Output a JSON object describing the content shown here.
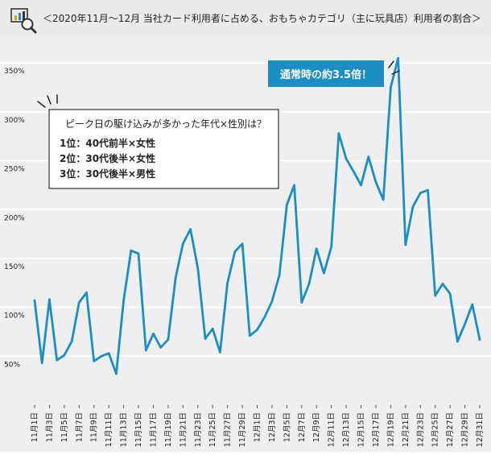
{
  "header": {
    "title": "＜2020年11月〜12月 当社カード利用者に占める、おもちゃカテゴリ（主に玩具店）利用者の割合＞",
    "logo_icon": "chart-magnifier-icon"
  },
  "callout": {
    "peak_badge": "通常時の約3.5倍！",
    "question": "ピーク日の駆け込みが多かった年代×性別は？",
    "ranks": [
      "1位：40代前半×女性",
      "2位：30代後半×女性",
      "3位：30代後半×男性"
    ]
  },
  "colors": {
    "line": "#1b8ec4",
    "badge": "#1b8ec4",
    "grid": "#ffffff",
    "background": "#efefef"
  },
  "chart_data": {
    "type": "line",
    "ylim": [
      0,
      365
    ],
    "yticks": [
      50,
      100,
      150,
      200,
      250,
      300,
      350
    ],
    "ytick_labels": [
      "50%",
      "100%",
      "150%",
      "200%",
      "250%",
      "300%",
      "350%"
    ],
    "x_tick_labels": [
      "11月1日",
      "11月3日",
      "11月5日",
      "11月7日",
      "11月9日",
      "11月11日",
      "11月13日",
      "11月15日",
      "11月17日",
      "11月19日",
      "11月21日",
      "11月23日",
      "11月25日",
      "11月27日",
      "11月29日",
      "12月1日",
      "12月3日",
      "12月5日",
      "12月7日",
      "12月9日",
      "12月11日",
      "12月13日",
      "12月15日",
      "12月17日",
      "12月19日",
      "12月21日",
      "12月23日",
      "12月25日",
      "12月27日",
      "12月29日",
      "12月31日"
    ],
    "series": [
      {
        "values": [
          107,
          43,
          108,
          46,
          51,
          65,
          105,
          115,
          45,
          50,
          53,
          32,
          107,
          158,
          155,
          56,
          73,
          59,
          67,
          130,
          165,
          180,
          140,
          68,
          78,
          54,
          125,
          157,
          165,
          71,
          77,
          90,
          106,
          133,
          205,
          225,
          105,
          124,
          160,
          135,
          162,
          278,
          252,
          239,
          225,
          254,
          228,
          210,
          325,
          355,
          164,
          203,
          217,
          220,
          112,
          124,
          114,
          65,
          83,
          103,
          67
        ]
      }
    ]
  }
}
